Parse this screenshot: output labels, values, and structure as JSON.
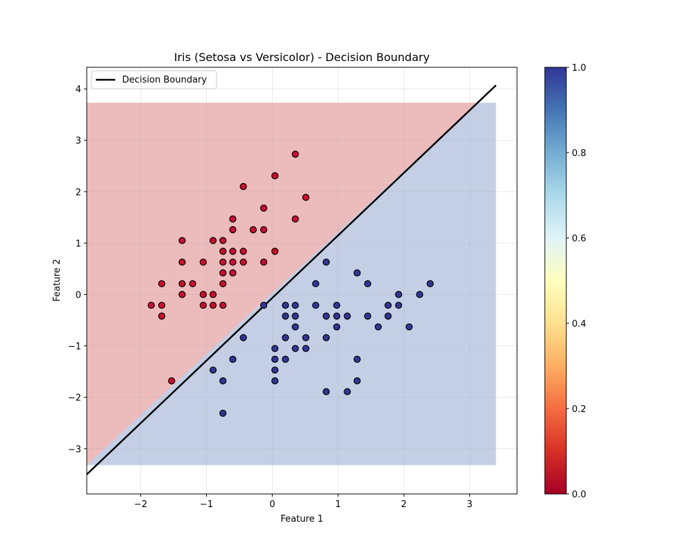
{
  "chart_data": {
    "type": "scatter",
    "title": "Iris (Setosa vs Versicolor) - Decision Boundary",
    "xlabel": "Feature 1",
    "ylabel": "Feature 2",
    "xlim": [
      -2.82,
      3.72
    ],
    "ylim": [
      -3.88,
      4.42
    ],
    "xticks": [
      -2,
      -1,
      0,
      1,
      2,
      3
    ],
    "yticks": [
      -3,
      -2,
      -1,
      0,
      1,
      2,
      3,
      4
    ],
    "grid": true,
    "legend": {
      "position": "top-left",
      "entries": [
        "Decision Boundary"
      ]
    },
    "decision_boundary": {
      "x": [
        -2.82,
        3.4
      ],
      "y": [
        -3.5,
        4.07
      ]
    },
    "regions": {
      "xrange": [
        -2.82,
        3.4
      ],
      "yrange": [
        -3.32,
        3.73
      ],
      "class0_color": "#ecbbbc",
      "class1_color": "#c4cfe6"
    },
    "colorbar": {
      "range": [
        0.0,
        1.0
      ],
      "ticks": [
        "0.0",
        "0.2",
        "0.4",
        "0.6",
        "0.8",
        "1.0"
      ],
      "colormap": "RdYlBu"
    },
    "series": [
      {
        "class": 0,
        "color": "#c8102e",
        "points": [
          [
            0.35,
            2.73
          ],
          [
            0.04,
            2.31
          ],
          [
            -0.44,
            2.1
          ],
          [
            0.51,
            1.89
          ],
          [
            -0.13,
            1.68
          ],
          [
            0.35,
            1.47
          ],
          [
            -0.6,
            1.47
          ],
          [
            -0.6,
            1.26
          ],
          [
            -0.29,
            1.26
          ],
          [
            -0.13,
            1.26
          ],
          [
            -1.37,
            1.05
          ],
          [
            -0.9,
            1.05
          ],
          [
            -0.75,
            1.05
          ],
          [
            -0.75,
            0.84
          ],
          [
            -0.6,
            0.84
          ],
          [
            -0.44,
            0.84
          ],
          [
            0.04,
            0.84
          ],
          [
            -1.37,
            0.63
          ],
          [
            -1.05,
            0.63
          ],
          [
            -0.75,
            0.63
          ],
          [
            -0.6,
            0.63
          ],
          [
            -0.44,
            0.63
          ],
          [
            -0.13,
            0.63
          ],
          [
            -0.75,
            0.42
          ],
          [
            -0.6,
            0.42
          ],
          [
            -1.68,
            0.21
          ],
          [
            -1.37,
            0.21
          ],
          [
            -1.21,
            0.21
          ],
          [
            -0.75,
            0.21
          ],
          [
            -1.37,
            0.0
          ],
          [
            -1.05,
            0.0
          ],
          [
            -0.9,
            0.0
          ],
          [
            -1.84,
            -0.21
          ],
          [
            -1.68,
            -0.21
          ],
          [
            -1.05,
            -0.21
          ],
          [
            -0.9,
            -0.21
          ],
          [
            -0.75,
            -0.21
          ],
          [
            -1.68,
            -0.42
          ],
          [
            -1.53,
            -1.68
          ]
        ]
      },
      {
        "class": 1,
        "color": "#313695",
        "points": [
          [
            0.82,
            0.63
          ],
          [
            1.29,
            0.42
          ],
          [
            0.66,
            0.21
          ],
          [
            1.45,
            0.21
          ],
          [
            2.4,
            0.21
          ],
          [
            1.92,
            0.0
          ],
          [
            2.24,
            0.0
          ],
          [
            -0.13,
            -0.21
          ],
          [
            0.2,
            -0.21
          ],
          [
            0.35,
            -0.21
          ],
          [
            0.66,
            -0.21
          ],
          [
            0.98,
            -0.21
          ],
          [
            1.76,
            -0.21
          ],
          [
            1.92,
            -0.21
          ],
          [
            0.2,
            -0.42
          ],
          [
            0.35,
            -0.42
          ],
          [
            0.82,
            -0.42
          ],
          [
            0.98,
            -0.42
          ],
          [
            1.14,
            -0.42
          ],
          [
            1.45,
            -0.42
          ],
          [
            1.76,
            -0.42
          ],
          [
            0.35,
            -0.63
          ],
          [
            0.98,
            -0.63
          ],
          [
            1.61,
            -0.63
          ],
          [
            2.08,
            -0.63
          ],
          [
            -0.44,
            -0.84
          ],
          [
            0.2,
            -0.84
          ],
          [
            0.51,
            -0.84
          ],
          [
            0.82,
            -0.84
          ],
          [
            0.04,
            -1.05
          ],
          [
            0.35,
            -1.05
          ],
          [
            0.51,
            -1.05
          ],
          [
            -0.6,
            -1.26
          ],
          [
            0.04,
            -1.26
          ],
          [
            0.2,
            -1.26
          ],
          [
            1.29,
            -1.26
          ],
          [
            -0.9,
            -1.47
          ],
          [
            0.04,
            -1.47
          ],
          [
            -0.75,
            -1.68
          ],
          [
            0.04,
            -1.68
          ],
          [
            1.29,
            -1.68
          ],
          [
            0.82,
            -1.89
          ],
          [
            1.14,
            -1.89
          ],
          [
            -0.75,
            -2.31
          ]
        ]
      }
    ]
  }
}
